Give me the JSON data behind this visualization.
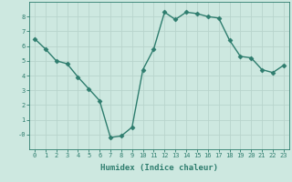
{
  "x": [
    0,
    1,
    2,
    3,
    4,
    5,
    6,
    7,
    8,
    9,
    10,
    11,
    12,
    13,
    14,
    15,
    16,
    17,
    18,
    19,
    20,
    21,
    22,
    23
  ],
  "y": [
    6.5,
    5.8,
    5.0,
    4.8,
    3.9,
    3.1,
    2.3,
    -0.2,
    -0.1,
    0.5,
    4.4,
    5.8,
    8.3,
    7.8,
    8.3,
    8.2,
    8.0,
    7.9,
    6.4,
    5.3,
    5.2,
    4.4,
    4.2,
    4.7
  ],
  "xlabel": "Humidex (Indice chaleur)",
  "ylabel": "",
  "xlim": [
    -0.5,
    23.5
  ],
  "ylim": [
    -1.0,
    9.0
  ],
  "yticks": [
    0,
    1,
    2,
    3,
    4,
    5,
    6,
    7,
    8
  ],
  "ytick_labels": [
    "-0",
    "1",
    "2",
    "3",
    "4",
    "5",
    "6",
    "7",
    "8"
  ],
  "xticks": [
    0,
    1,
    2,
    3,
    4,
    5,
    6,
    7,
    8,
    9,
    10,
    11,
    12,
    13,
    14,
    15,
    16,
    17,
    18,
    19,
    20,
    21,
    22,
    23
  ],
  "line_color": "#2e7d6e",
  "marker": "D",
  "marker_size": 2.5,
  "bg_color": "#cde8e0",
  "grid_color": "#b8d4cc",
  "tick_label_color": "#2e7d6e",
  "xlabel_color": "#2e7d6e",
  "font_size_tick": 5.0,
  "font_size_xlabel": 6.5
}
